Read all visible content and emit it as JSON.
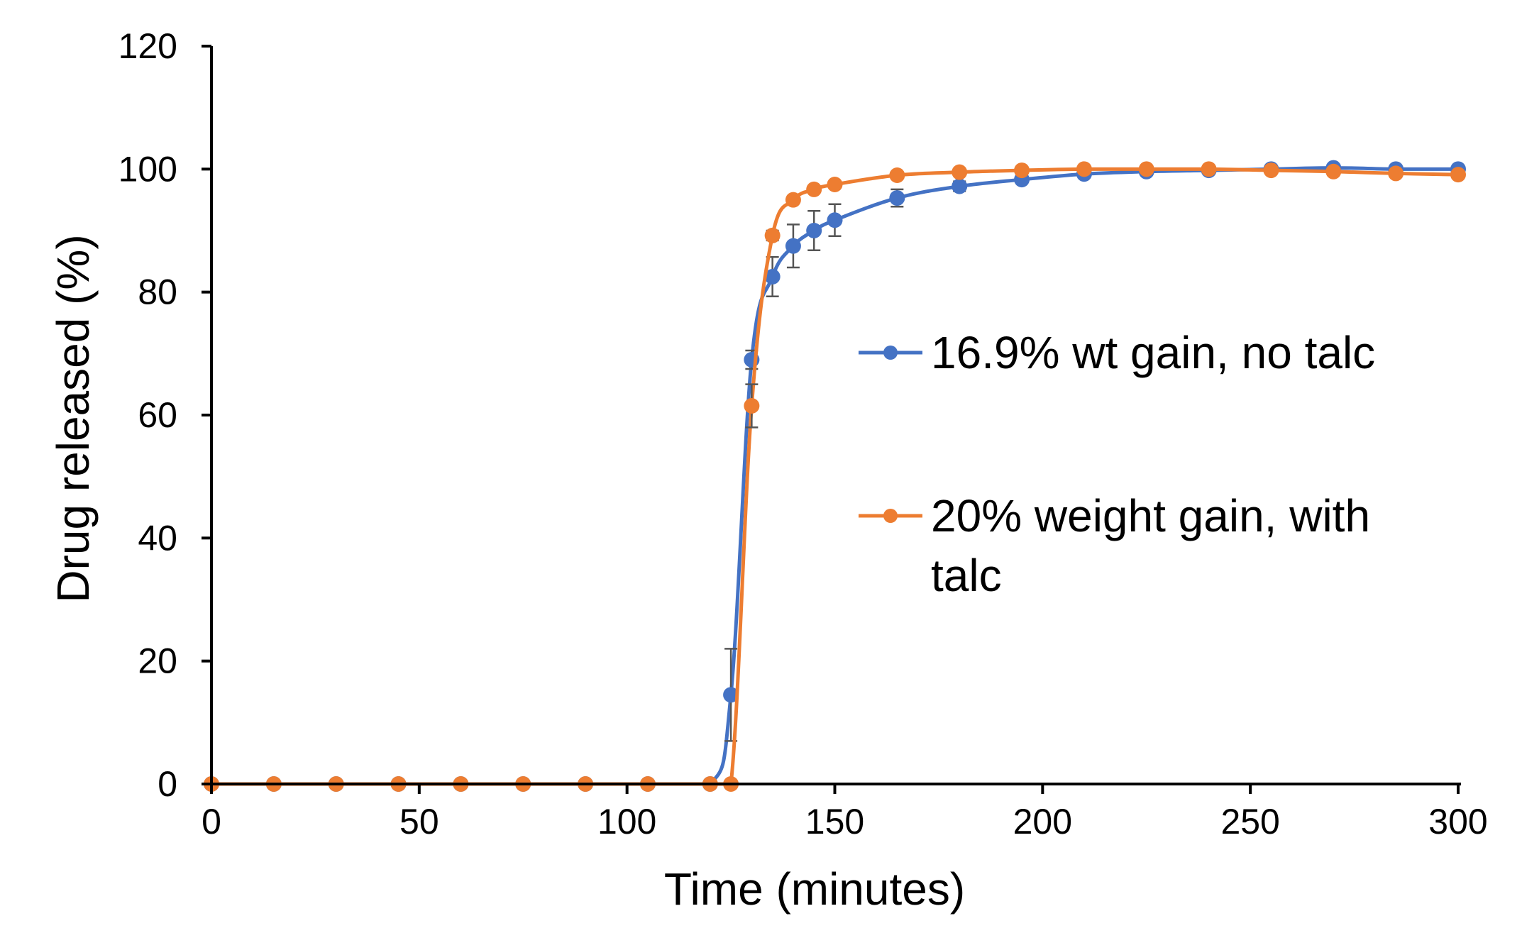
{
  "chart_data": {
    "type": "line",
    "title": "",
    "xlabel": "Time (minutes)",
    "ylabel": "Drug released (%)",
    "xlim": [
      0,
      300
    ],
    "ylim": [
      0,
      120
    ],
    "x_ticks": [
      0,
      50,
      100,
      150,
      200,
      250,
      300
    ],
    "y_ticks": [
      0,
      20,
      40,
      60,
      80,
      100,
      120
    ],
    "grid": false,
    "legend_position": "right",
    "series": [
      {
        "name": "16.9% wt gain, no talc",
        "color": "#4472C4",
        "x": [
          0,
          15,
          30,
          45,
          60,
          75,
          90,
          105,
          120,
          125,
          130,
          135,
          140,
          145,
          150,
          165,
          180,
          195,
          210,
          225,
          240,
          255,
          270,
          285,
          300
        ],
        "y": [
          0,
          0,
          0,
          0,
          0,
          0,
          0,
          0,
          0,
          14.5,
          69,
          82.5,
          87.5,
          90,
          91.7,
          95.3,
          97.2,
          98.3,
          99.2,
          99.6,
          99.8,
          100,
          100.2,
          100,
          100
        ],
        "error": [
          0,
          0,
          0,
          0,
          0,
          0,
          0,
          0,
          0,
          7.5,
          1.5,
          3.2,
          3.5,
          3.2,
          2.6,
          1.4,
          0.8,
          0.6,
          0.4,
          0.3,
          0.2,
          0.2,
          0.2,
          0.2,
          0.2
        ]
      },
      {
        "name": "20% weight gain, with talc",
        "color": "#ED7D31",
        "x": [
          0,
          15,
          30,
          45,
          60,
          75,
          90,
          105,
          120,
          125,
          130,
          135,
          140,
          145,
          150,
          165,
          180,
          195,
          210,
          225,
          240,
          255,
          270,
          285,
          300
        ],
        "y": [
          0,
          0,
          0,
          0,
          0,
          0,
          0,
          0,
          0,
          0,
          61.5,
          89.2,
          95,
          96.7,
          97.5,
          99,
          99.5,
          99.8,
          100,
          100,
          100,
          99.8,
          99.6,
          99.3,
          99.1
        ],
        "error": [
          0,
          0,
          0,
          0,
          0,
          0,
          0,
          0,
          0,
          0,
          3.5,
          0.8,
          0.5,
          0.4,
          0.3,
          0.2,
          0.2,
          0.2,
          0.2,
          0.2,
          0.2,
          0.2,
          0.2,
          0.2,
          0.2
        ]
      }
    ]
  }
}
